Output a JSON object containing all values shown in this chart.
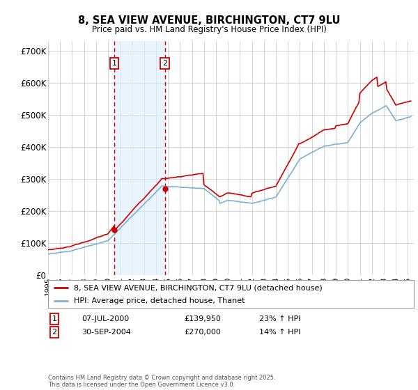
{
  "title": "8, SEA VIEW AVENUE, BIRCHINGTON, CT7 9LU",
  "subtitle": "Price paid vs. HM Land Registry's House Price Index (HPI)",
  "footer": "Contains HM Land Registry data © Crown copyright and database right 2025.\nThis data is licensed under the Open Government Licence v3.0.",
  "legend_line1": "8, SEA VIEW AVENUE, BIRCHINGTON, CT7 9LU (detached house)",
  "legend_line2": "HPI: Average price, detached house, Thanet",
  "annotation1_date": "07-JUL-2000",
  "annotation1_price": "£139,950",
  "annotation1_hpi": "23% ↑ HPI",
  "annotation2_date": "30-SEP-2004",
  "annotation2_price": "£270,000",
  "annotation2_hpi": "14% ↑ HPI",
  "sale1_x": 2000.52,
  "sale1_y": 139950,
  "sale2_x": 2004.75,
  "sale2_y": 270000,
  "ylim": [
    0,
    730000
  ],
  "xlim": [
    1995.0,
    2025.5
  ],
  "background_color": "#ffffff",
  "plot_bg_color": "#ffffff",
  "grid_color": "#cccccc",
  "red_line_color": "#cc0000",
  "blue_line_color": "#7ab0d4",
  "sale_marker_color": "#cc0000",
  "annotation_box_color": "#cc0000",
  "shade_color": "#ddeeff",
  "dashed_line_color": "#cc0000"
}
